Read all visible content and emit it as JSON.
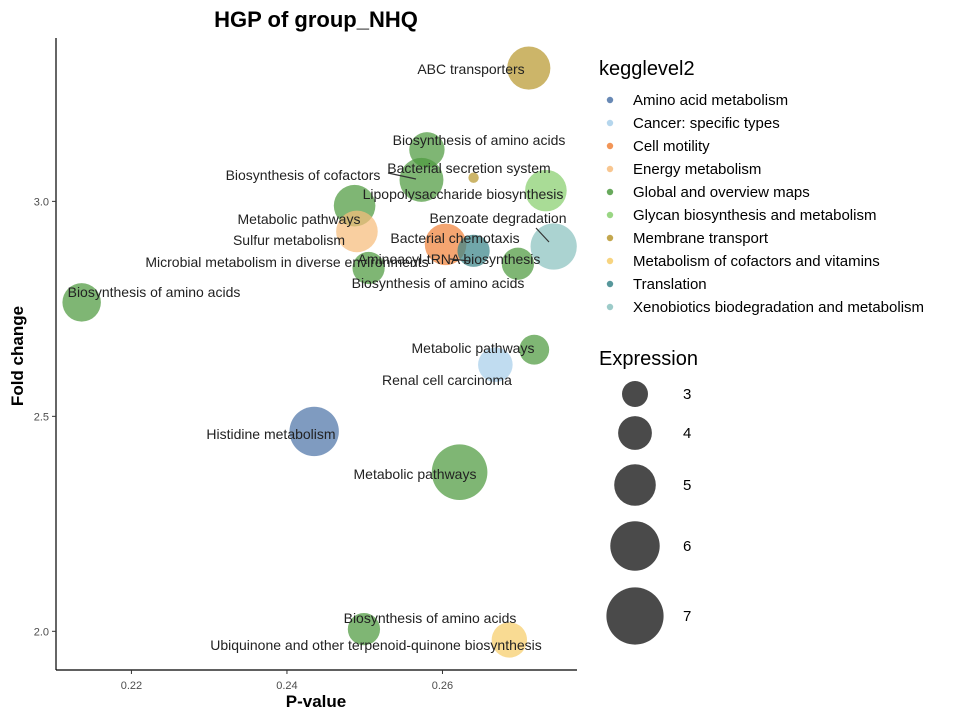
{
  "chart_data": {
    "type": "scatter",
    "title": "HGP of group_NHQ",
    "xlabel": "P-value",
    "ylabel": "Fold change",
    "xlim": [
      0.2103,
      0.2773
    ],
    "ylim": [
      1.91,
      3.38
    ],
    "xticks": [
      0.22,
      0.24,
      0.26
    ],
    "xtick_labels": [
      "0.22",
      "0.24",
      "0.26"
    ],
    "yticks": [
      2.0,
      2.5,
      3.0
    ],
    "ytick_labels": [
      "2.0",
      "2.5",
      "3.0"
    ],
    "grid": false,
    "legend_placement": "right",
    "color_legend": {
      "title": "kegglevel2",
      "entries": [
        {
          "name": "Amino acid metabolism",
          "color": "#4e74a8"
        },
        {
          "name": "Cancer: specific types",
          "color": "#a8cfea"
        },
        {
          "name": "Cell motility",
          "color": "#f0823a"
        },
        {
          "name": "Energy metabolism",
          "color": "#f7bc7c"
        },
        {
          "name": "Global and overview maps",
          "color": "#4e9a3f"
        },
        {
          "name": "Glycan biosynthesis and metabolism",
          "color": "#88cf6e"
        },
        {
          "name": "Membrane transport",
          "color": "#b8982f"
        },
        {
          "name": "Metabolism of cofactors and vitamins",
          "color": "#f6cd6a"
        },
        {
          "name": "Translation",
          "color": "#3a8589"
        },
        {
          "name": "Xenobiotics biodegradation and metabolism",
          "color": "#8bc2bf"
        }
      ]
    },
    "size_legend": {
      "title": "Expression",
      "entries": [
        {
          "label": "3",
          "value": 3
        },
        {
          "label": "4",
          "value": 4
        },
        {
          "label": "5",
          "value": 5
        },
        {
          "label": "6",
          "value": 6
        },
        {
          "label": "7",
          "value": 7
        }
      ]
    },
    "points": [
      {
        "label": "ABC transporters",
        "x": 0.2711,
        "y": 3.31,
        "expression": 5.2,
        "category": "Membrane transport"
      },
      {
        "label": "Biosynthesis of amino acids",
        "x": 0.258,
        "y": 3.12,
        "expression": 4.2,
        "category": "Global and overview maps"
      },
      {
        "label": "Bacterial secretion system",
        "x": 0.264,
        "y": 3.055,
        "expression": 1.0,
        "category": "Membrane transport"
      },
      {
        "label": "Biosynthesis of cofactors",
        "x": 0.2573,
        "y": 3.05,
        "expression": 5.3,
        "category": "Global and overview maps"
      },
      {
        "label": "Lipopolysaccharide biosynthesis",
        "x": 0.2733,
        "y": 3.025,
        "expression": 5.0,
        "category": "Glycan biosynthesis and metabolism"
      },
      {
        "label": "Metabolic pathways",
        "x": 0.2487,
        "y": 2.99,
        "expression": 5.0,
        "category": "Global and overview maps"
      },
      {
        "label": "Benzoate degradation",
        "x": 0.2743,
        "y": 2.895,
        "expression": 5.6,
        "category": "Xenobiotics biodegradation and metabolism"
      },
      {
        "label": "Sulfur metabolism",
        "x": 0.249,
        "y": 2.93,
        "expression": 5.0,
        "category": "Energy metabolism"
      },
      {
        "label": "Bacterial chemotaxis",
        "x": 0.2604,
        "y": 2.9,
        "expression": 5.0,
        "category": "Cell motility"
      },
      {
        "label": "Aminoacyl-tRNA biosynthesis",
        "x": 0.264,
        "y": 2.885,
        "expression": 3.8,
        "category": "Translation"
      },
      {
        "label": "Microbial metabolism in diverse environments",
        "x": 0.2505,
        "y": 2.845,
        "expression": 3.8,
        "category": "Global and overview maps"
      },
      {
        "label": "Biosynthesis of amino acids",
        "x": 0.2697,
        "y": 2.855,
        "expression": 3.8,
        "category": "Global and overview maps"
      },
      {
        "label": "Biosynthesis of amino acids",
        "x": 0.2136,
        "y": 2.765,
        "expression": 4.6,
        "category": "Global and overview maps"
      },
      {
        "label": "Metabolic pathways",
        "x": 0.2718,
        "y": 2.655,
        "expression": 3.5,
        "category": "Global and overview maps"
      },
      {
        "label": "Renal cell carcinoma",
        "x": 0.2668,
        "y": 2.62,
        "expression": 4.1,
        "category": "Cancer: specific types"
      },
      {
        "label": "Histidine metabolism",
        "x": 0.2435,
        "y": 2.465,
        "expression": 6.0,
        "category": "Amino acid metabolism"
      },
      {
        "label": "Metabolic pathways",
        "x": 0.2622,
        "y": 2.37,
        "expression": 6.8,
        "category": "Global and overview maps"
      },
      {
        "label": "Biosynthesis of amino acids",
        "x": 0.2499,
        "y": 2.005,
        "expression": 3.8,
        "category": "Global and overview maps"
      },
      {
        "label": "Ubiquinone and other terpenoid-quinone biosynthesis",
        "x": 0.2686,
        "y": 1.98,
        "expression": 4.2,
        "category": "Metabolism of cofactors and vitamins"
      }
    ]
  }
}
